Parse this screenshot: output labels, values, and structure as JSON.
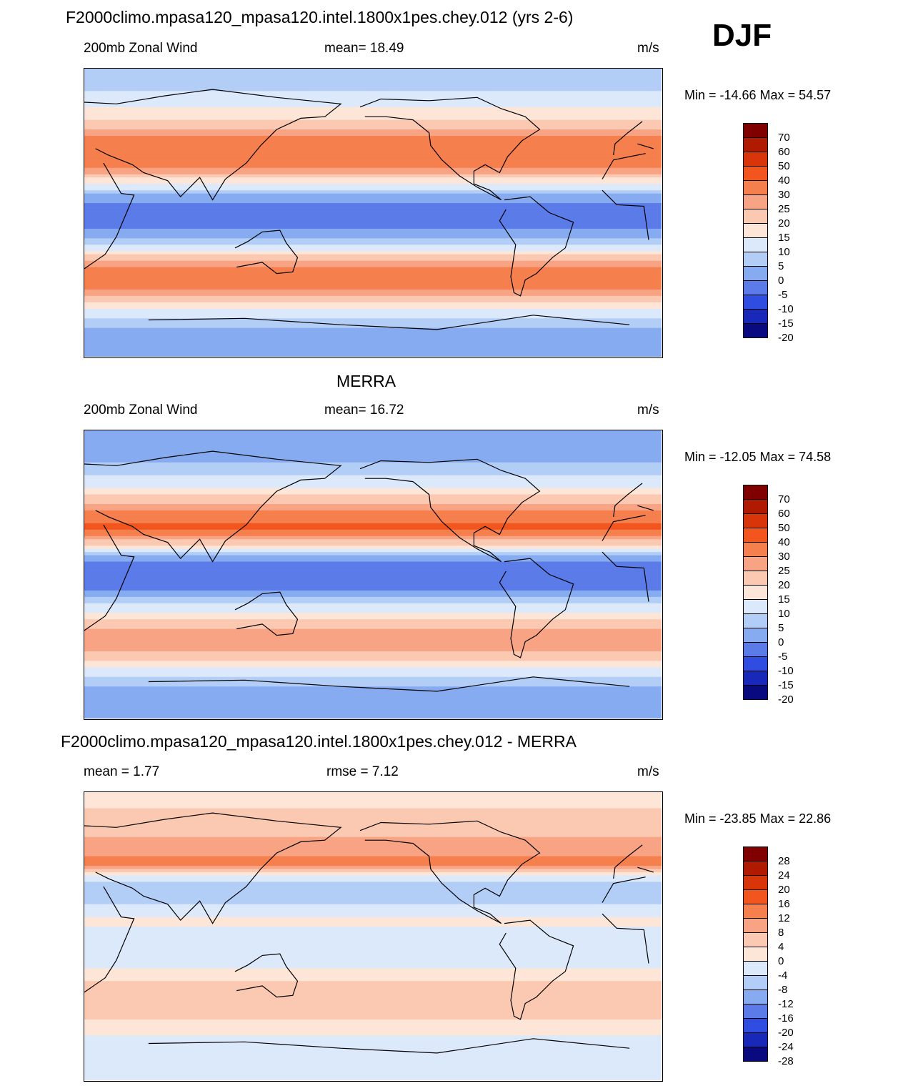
{
  "header": {
    "season": "DJF"
  },
  "chart_data": [
    {
      "type": "heatmap",
      "title": "F2000climo.mpasa120_mpasa120.intel.1800x1pes.chey.012 (yrs 2-6)",
      "left_label": "200mb Zonal Wind",
      "center_label": "mean=  18.49",
      "units": "m/s",
      "minmax": "Min = -14.66 Max =  54.57",
      "levels": [
        "70",
        "60",
        "50",
        "40",
        "30",
        "25",
        "20",
        "15",
        "10",
        "5",
        "0",
        "-5",
        "-10",
        "-15",
        "-20"
      ],
      "zonal_profile": [
        {
          "lat": 90,
          "value": 5
        },
        {
          "lat": 70,
          "value": 12
        },
        {
          "lat": 55,
          "value": 22
        },
        {
          "lat": 40,
          "value": 38
        },
        {
          "lat": 30,
          "value": 32
        },
        {
          "lat": 20,
          "value": 18
        },
        {
          "lat": 10,
          "value": 2
        },
        {
          "lat": 0,
          "value": -4
        },
        {
          "lat": -10,
          "value": -1
        },
        {
          "lat": -20,
          "value": 10
        },
        {
          "lat": -35,
          "value": 32
        },
        {
          "lat": -45,
          "value": 34
        },
        {
          "lat": -55,
          "value": 22
        },
        {
          "lat": -65,
          "value": 10
        },
        {
          "lat": -75,
          "value": 3
        },
        {
          "lat": -90,
          "value": 0
        }
      ]
    },
    {
      "type": "heatmap",
      "title": "MERRA",
      "left_label": "200mb Zonal Wind",
      "center_label": "mean=  16.72",
      "units": "m/s",
      "minmax": "Min = -12.05 Max =  74.58",
      "levels": [
        "70",
        "60",
        "50",
        "40",
        "30",
        "25",
        "20",
        "15",
        "10",
        "5",
        "0",
        "-5",
        "-10",
        "-15",
        "-20"
      ],
      "zonal_profile": [
        {
          "lat": 90,
          "value": 2
        },
        {
          "lat": 70,
          "value": 5
        },
        {
          "lat": 55,
          "value": 14
        },
        {
          "lat": 40,
          "value": 30
        },
        {
          "lat": 30,
          "value": 42
        },
        {
          "lat": 20,
          "value": 22
        },
        {
          "lat": 10,
          "value": 2
        },
        {
          "lat": 0,
          "value": -5
        },
        {
          "lat": -10,
          "value": 0
        },
        {
          "lat": -20,
          "value": 12
        },
        {
          "lat": -35,
          "value": 26
        },
        {
          "lat": -45,
          "value": 28
        },
        {
          "lat": -55,
          "value": 18
        },
        {
          "lat": -65,
          "value": 8
        },
        {
          "lat": -75,
          "value": 2
        },
        {
          "lat": -90,
          "value": 0
        }
      ]
    },
    {
      "type": "heatmap",
      "title": "F2000climo.mpasa120_mpasa120.intel.1800x1pes.chey.012 - MERRA",
      "left_label": "mean =    1.77",
      "center_label": "rmse =    7.12",
      "units": "m/s",
      "minmax": "Min = -23.85 Max =  22.86",
      "levels": [
        "28",
        "24",
        "20",
        "16",
        "12",
        "8",
        "4",
        "0",
        "-4",
        "-8",
        "-12",
        "-16",
        "-20",
        "-24",
        "-28"
      ],
      "zonal_profile": [
        {
          "lat": 90,
          "value": 2
        },
        {
          "lat": 70,
          "value": 6
        },
        {
          "lat": 55,
          "value": 10
        },
        {
          "lat": 45,
          "value": 14
        },
        {
          "lat": 35,
          "value": -4
        },
        {
          "lat": 25,
          "value": -6
        },
        {
          "lat": 10,
          "value": 1
        },
        {
          "lat": 0,
          "value": -2
        },
        {
          "lat": -10,
          "value": -4
        },
        {
          "lat": -25,
          "value": 2
        },
        {
          "lat": -35,
          "value": 7
        },
        {
          "lat": -45,
          "value": 6
        },
        {
          "lat": -55,
          "value": 3
        },
        {
          "lat": -70,
          "value": -3
        },
        {
          "lat": -90,
          "value": -1
        }
      ]
    }
  ],
  "palette": [
    "#800000",
    "#b01a00",
    "#d8360a",
    "#f2561e",
    "#f67f4e",
    "#f8a484",
    "#fbc8b1",
    "#fde6d8",
    "#dce9fb",
    "#b2cdf6",
    "#86abf0",
    "#5a7be8",
    "#2f4de0",
    "#1828b8",
    "#0a0a80"
  ]
}
